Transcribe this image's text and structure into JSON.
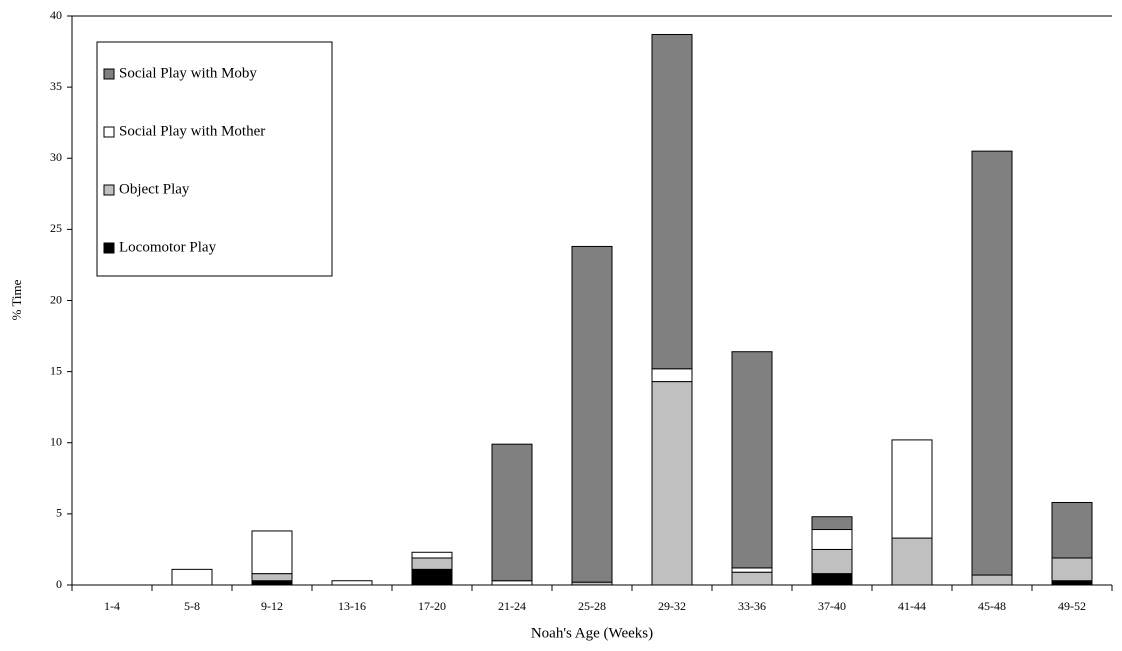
{
  "chart_data": {
    "type": "stacked-bar",
    "x_label": "Noah's Age (Weeks)",
    "y_label": "% Time",
    "categories": [
      "1-4",
      "5-8",
      "9-12",
      "13-16",
      "17-20",
      "21-24",
      "25-28",
      "29-32",
      "33-36",
      "37-40",
      "41-44",
      "45-48",
      "49-52"
    ],
    "series": [
      {
        "name": "Locomotor Play",
        "color": "#000000",
        "values": [
          0,
          0,
          0.3,
          0,
          1.1,
          0,
          0,
          0,
          0,
          0.8,
          0,
          0,
          0.3
        ]
      },
      {
        "name": "Object Play",
        "color": "#c0c0c0",
        "values": [
          0,
          0,
          0.5,
          0,
          0.8,
          0,
          0.2,
          14.3,
          0.9,
          1.7,
          3.3,
          0.7,
          1.6
        ]
      },
      {
        "name": "Social Play with Mother",
        "color": "#ffffff",
        "values": [
          0,
          1.1,
          3.0,
          0.3,
          0.4,
          0.3,
          0,
          0.9,
          0.3,
          1.4,
          6.9,
          0,
          0
        ]
      },
      {
        "name": "Social Play with Moby",
        "color": "#808080",
        "values": [
          0,
          0,
          0,
          0,
          0,
          9.6,
          23.6,
          23.5,
          15.2,
          0.9,
          0,
          29.8,
          3.9
        ]
      }
    ],
    "ylim": [
      0,
      40
    ],
    "yticks": [
      0,
      5,
      10,
      15,
      20,
      25,
      30,
      35,
      40
    ]
  }
}
